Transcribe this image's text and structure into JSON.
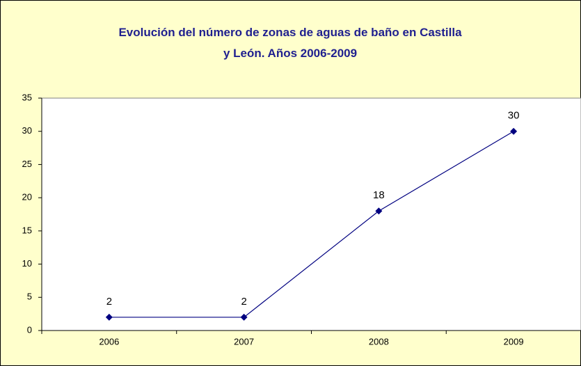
{
  "chart_data": {
    "type": "line",
    "title": "Evolución del número de zonas de aguas de baño en Castilla y León. Años 2006-2009",
    "categories": [
      "2006",
      "2007",
      "2008",
      "2009"
    ],
    "values": [
      2,
      2,
      18,
      30
    ],
    "color": "#000080",
    "ylim": [
      0,
      35
    ],
    "yticks": [
      0,
      5,
      10,
      15,
      20,
      25,
      30,
      35
    ],
    "data_labels": true
  }
}
